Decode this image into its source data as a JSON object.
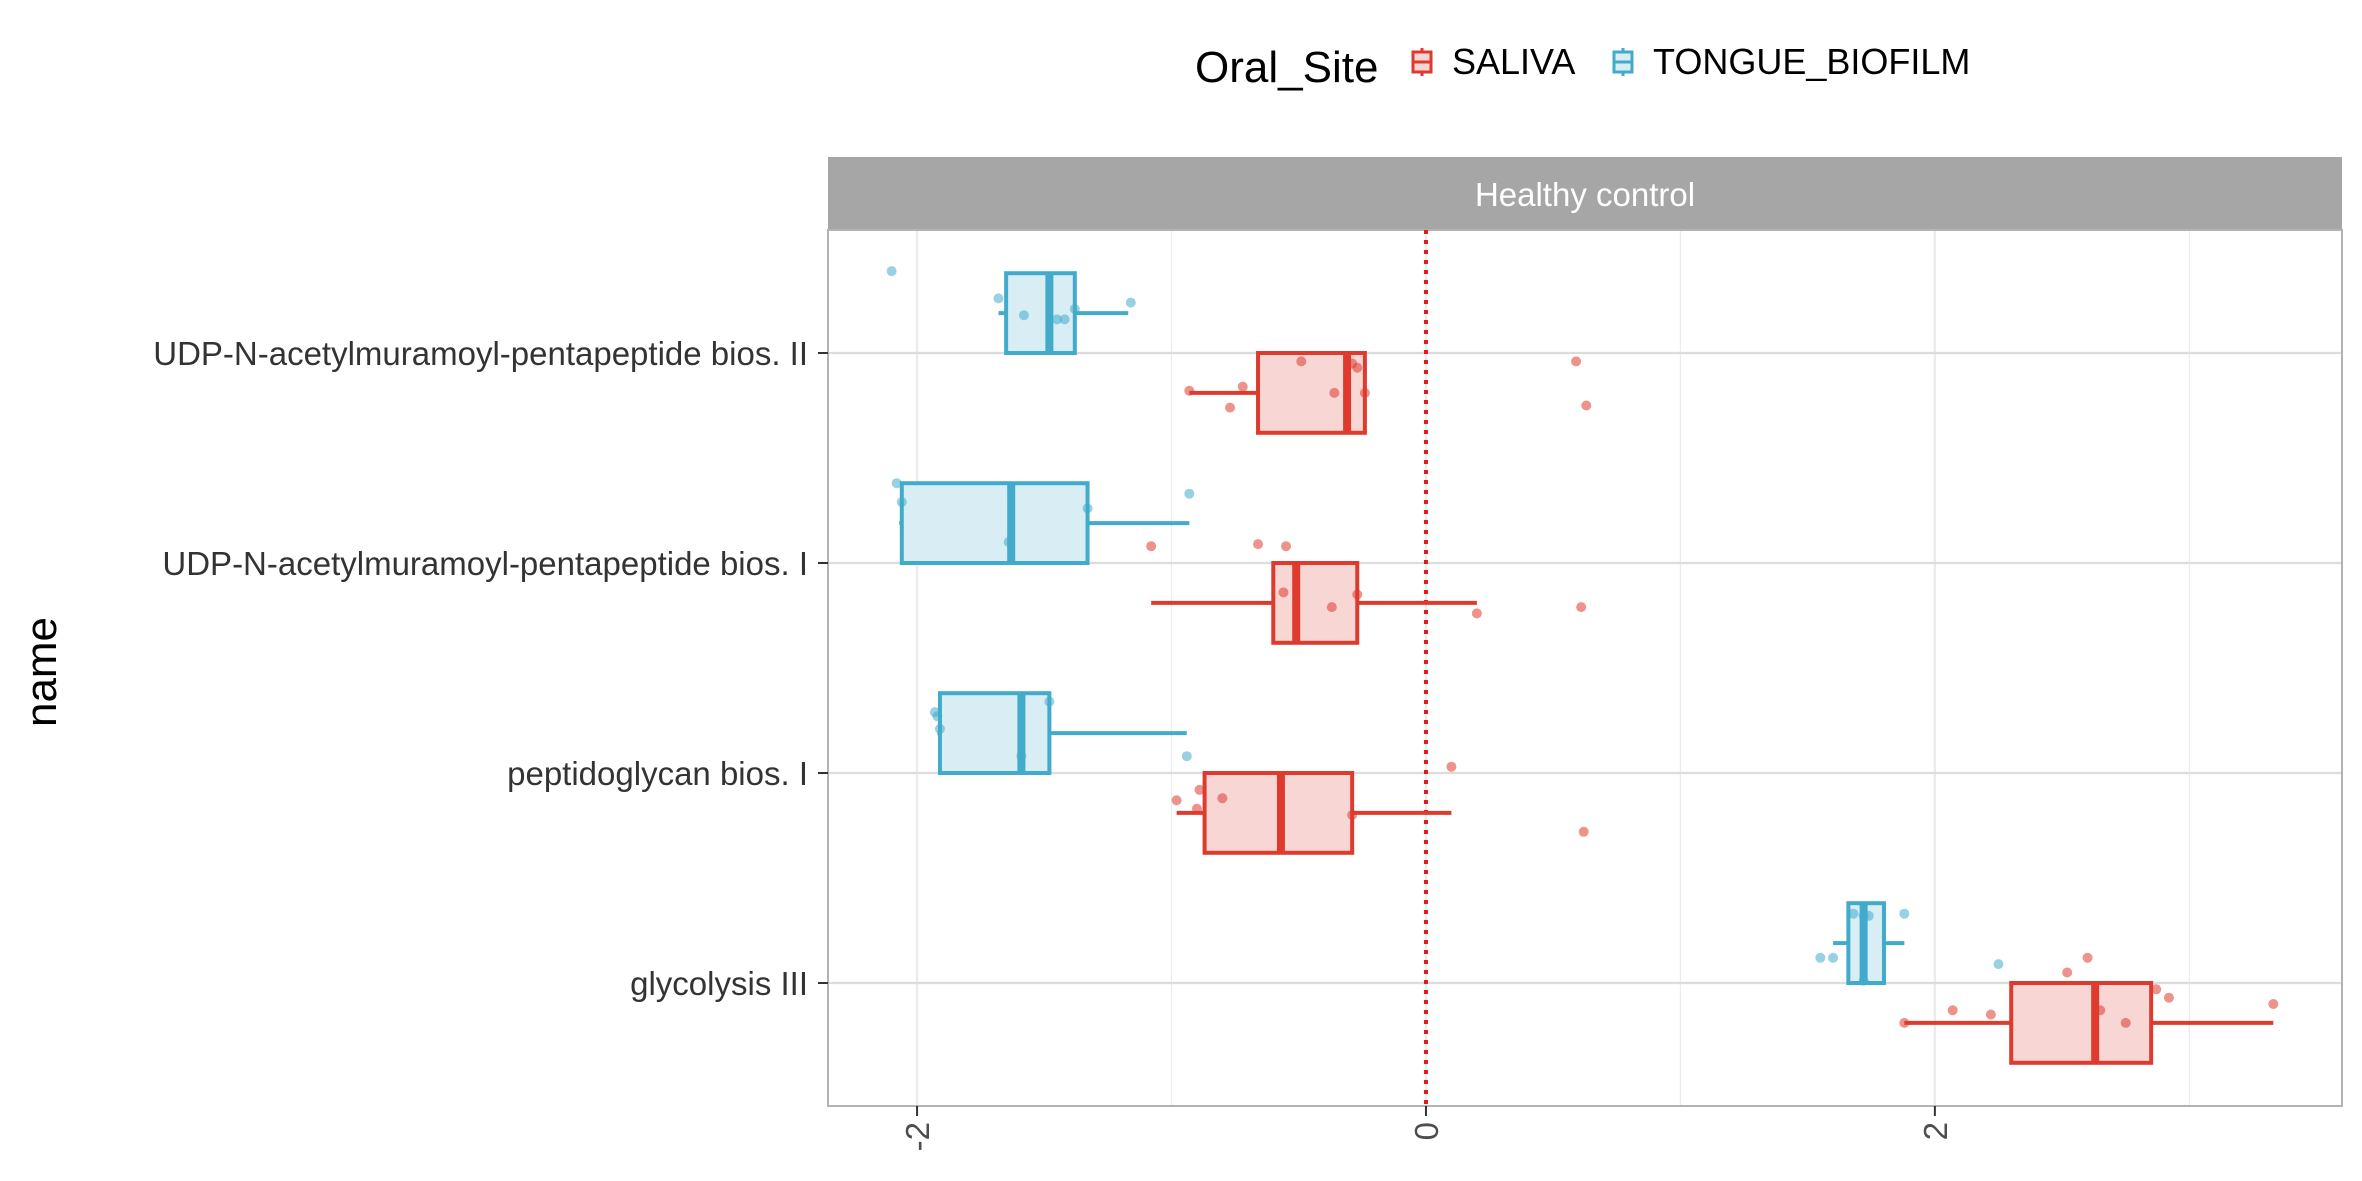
{
  "chart_data": {
    "type": "boxplot",
    "facet_label": "Healthy control",
    "ylabel": "name",
    "xlabel": "",
    "legend_title": "Oral_Site",
    "legend_position": "top",
    "xlim": [
      -2.35,
      3.6
    ],
    "x_ticks": [
      -2,
      0,
      2
    ],
    "x_tick_labels": [
      "-2",
      "0",
      "2"
    ],
    "reference_line_x": 0,
    "reference_line_color": "#e31a1c",
    "grid": true,
    "categories": [
      "glycolysis III",
      "peptidoglycan bios. I",
      "UDP-N-acetylmuramoyl-pentapeptide bios. I",
      "UDP-N-acetylmuramoyl-pentapeptide bios. II"
    ],
    "series": [
      {
        "name": "SALIVA",
        "color": "#de3b2e",
        "fill": "#f7d6d4",
        "boxes": [
          {
            "category": "glycolysis III",
            "whisker_low": 1.88,
            "q1": 2.3,
            "median": 2.63,
            "q3": 2.85,
            "whisker_high": 3.33,
            "points": [
              [
                1.88,
                -0.19
              ],
              [
                2.07,
                -0.13
              ],
              [
                2.22,
                -0.15
              ],
              [
                2.52,
                0.05
              ],
              [
                2.6,
                0.12
              ],
              [
                2.65,
                -0.13
              ],
              [
                2.75,
                -0.19
              ],
              [
                2.87,
                -0.03
              ],
              [
                2.92,
                -0.07
              ],
              [
                3.33,
                -0.1
              ]
            ]
          },
          {
            "category": "peptidoglycan bios. I",
            "whisker_low": -0.98,
            "q1": -0.87,
            "median": -0.57,
            "q3": -0.29,
            "whisker_high": 0.1,
            "points": [
              [
                -0.98,
                -0.13
              ],
              [
                -0.89,
                -0.08
              ],
              [
                -0.8,
                -0.12
              ],
              [
                -0.9,
                -0.17
              ],
              [
                0.1,
                0.03
              ],
              [
                -0.29,
                -0.2
              ],
              [
                0.62,
                -0.28
              ]
            ]
          },
          {
            "category": "UDP-N-acetylmuramoyl-pentapeptide bios. I",
            "whisker_low": -1.08,
            "q1": -0.6,
            "median": -0.51,
            "q3": -0.27,
            "whisker_high": 0.2,
            "points": [
              [
                -1.08,
                0.08
              ],
              [
                -0.66,
                0.09
              ],
              [
                -0.55,
                0.08
              ],
              [
                -0.56,
                -0.14
              ],
              [
                -0.37,
                -0.21
              ],
              [
                -0.27,
                -0.15
              ],
              [
                0.2,
                -0.24
              ],
              [
                0.61,
                -0.21
              ]
            ]
          },
          {
            "category": "UDP-N-acetylmuramoyl-pentapeptide bios. II",
            "whisker_low": -0.93,
            "q1": -0.66,
            "median": -0.31,
            "q3": -0.24,
            "whisker_high": -0.24,
            "points": [
              [
                -0.93,
                -0.18
              ],
              [
                -0.77,
                -0.26
              ],
              [
                -0.72,
                -0.16
              ],
              [
                -0.49,
                -0.04
              ],
              [
                -0.29,
                -0.05
              ],
              [
                -0.27,
                -0.07
              ],
              [
                -0.36,
                -0.19
              ],
              [
                -0.24,
                -0.19
              ],
              [
                0.59,
                -0.04
              ],
              [
                0.63,
                -0.25
              ]
            ]
          }
        ]
      },
      {
        "name": "TONGUE_BIOFILM",
        "color": "#42abcc",
        "fill": "#d8edf4",
        "boxes": [
          {
            "category": "glycolysis III",
            "whisker_low": 1.6,
            "q1": 1.66,
            "median": 1.72,
            "q3": 1.8,
            "whisker_high": 1.88,
            "points": [
              [
                1.6,
                0.12
              ],
              [
                1.68,
                0.33
              ],
              [
                1.72,
                0.32
              ],
              [
                1.74,
                0.32
              ],
              [
                1.88,
                0.33
              ],
              [
                1.72,
                0.01
              ],
              [
                1.55,
                0.12
              ],
              [
                2.25,
                0.09
              ]
            ]
          },
          {
            "category": "peptidoglycan bios. I",
            "whisker_low": -1.92,
            "q1": -1.91,
            "median": -1.59,
            "q3": -1.48,
            "whisker_high": -0.94,
            "points": [
              [
                -1.92,
                0.27
              ],
              [
                -1.93,
                0.29
              ],
              [
                -1.91,
                0.21
              ],
              [
                -1.48,
                0.34
              ],
              [
                -1.59,
                0.08
              ],
              [
                -0.94,
                0.08
              ]
            ]
          },
          {
            "category": "UDP-N-acetylmuramoyl-pentapeptide bios. I",
            "whisker_low": -2.07,
            "q1": -2.06,
            "median": -1.63,
            "q3": -1.33,
            "whisker_high": -0.93,
            "points": [
              [
                -2.08,
                0.38
              ],
              [
                -2.06,
                0.29
              ],
              [
                -1.64,
                0.1
              ],
              [
                -1.33,
                0.26
              ],
              [
                -0.93,
                0.33
              ]
            ]
          },
          {
            "category": "UDP-N-acetylmuramoyl-pentapeptide bios. II",
            "whisker_low": -1.68,
            "q1": -1.65,
            "median": -1.48,
            "q3": -1.38,
            "whisker_high": -1.17,
            "points": [
              [
                -2.1,
                0.39
              ],
              [
                -1.68,
                0.26
              ],
              [
                -1.58,
                0.18
              ],
              [
                -1.42,
                0.16
              ],
              [
                -1.38,
                0.21
              ],
              [
                -1.45,
                0.16
              ],
              [
                -1.16,
                0.24
              ]
            ]
          }
        ]
      }
    ]
  }
}
